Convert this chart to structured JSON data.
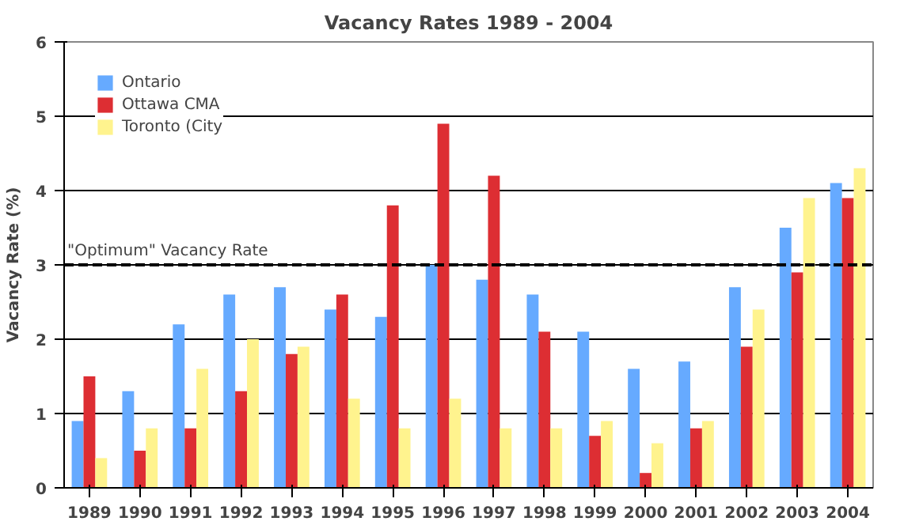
{
  "chart_data": {
    "type": "bar",
    "title": "Vacancy Rates 1989 - 2004",
    "ylabel": "Vacancy Rate (%)",
    "categories": [
      "1989",
      "1990",
      "1991",
      "1992",
      "1993",
      "1994",
      "1995",
      "1996",
      "1997",
      "1998",
      "1999",
      "2000",
      "2001",
      "2002",
      "2003",
      "2004"
    ],
    "series": [
      {
        "name": "Ontario",
        "color": "#66aaff",
        "values": [
          0.9,
          1.3,
          2.2,
          2.6,
          2.7,
          2.4,
          2.3,
          3.0,
          2.8,
          2.6,
          2.1,
          1.6,
          1.7,
          2.7,
          3.5,
          4.1
        ]
      },
      {
        "name": "Ottawa CMA",
        "color": "#dd2e33",
        "values": [
          1.5,
          0.5,
          0.8,
          1.3,
          1.8,
          2.6,
          3.8,
          4.9,
          4.2,
          2.1,
          0.7,
          0.2,
          0.8,
          1.9,
          2.9,
          3.9
        ]
      },
      {
        "name": "Toronto (City",
        "color": "#fff38e",
        "values": [
          0.4,
          0.8,
          1.6,
          2.0,
          1.9,
          1.2,
          0.8,
          1.2,
          0.8,
          0.8,
          0.9,
          0.6,
          0.9,
          2.4,
          3.9,
          4.3
        ]
      }
    ],
    "ylim": [
      0,
      6
    ],
    "yticks": [
      0,
      1,
      2,
      3,
      4,
      5,
      6
    ],
    "grid": "y",
    "legend": "top left",
    "ref_lines": [
      {
        "axis": "y",
        "value": 3,
        "label": "\"Optimum\" Vacancy Rate",
        "color": "#000000",
        "line_style": "dashed"
      }
    ]
  }
}
